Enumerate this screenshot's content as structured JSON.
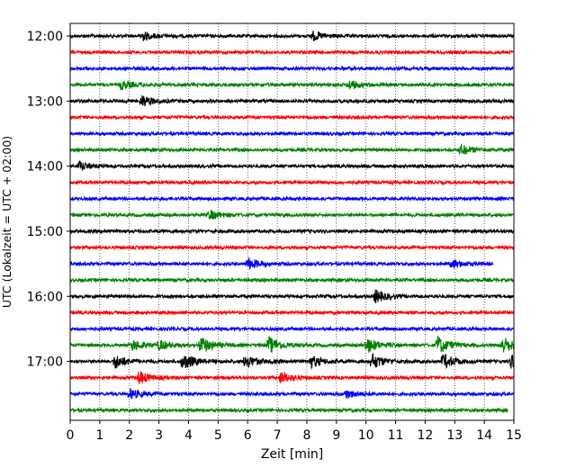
{
  "chart_data": {
    "type": "line",
    "title": "",
    "xlabel": "Zeit  [min]",
    "ylabel": "UTC (Lokalzeit = UTC + 02:00)",
    "xlim": [
      0,
      15
    ],
    "x_ticks": [
      "0",
      "1",
      "2",
      "3",
      "4",
      "5",
      "6",
      "7",
      "8",
      "9",
      "10",
      "11",
      "12",
      "13",
      "14",
      "15"
    ],
    "y_tick_labels": [
      "12:00",
      "13:00",
      "14:00",
      "15:00",
      "16:00",
      "17:00"
    ],
    "grid": "vertical dotted",
    "trace_colors": [
      "#000000",
      "#ff0000",
      "#0000ff",
      "#008000"
    ],
    "series": [
      {
        "values": [
          "12:00",
          15,
          "#000000"
        ]
      },
      {
        "values": [
          "12:15",
          15,
          "#ff0000"
        ]
      },
      {
        "values": [
          "12:30",
          15,
          "#0000ff"
        ]
      },
      {
        "values": [
          "12:45",
          15,
          "#008000"
        ]
      },
      {
        "values": [
          "13:00",
          15,
          "#000000"
        ]
      },
      {
        "values": [
          "13:15",
          15,
          "#ff0000"
        ]
      },
      {
        "values": [
          "13:30",
          15,
          "#0000ff"
        ]
      },
      {
        "values": [
          "13:45",
          15,
          "#008000"
        ]
      },
      {
        "values": [
          "14:00",
          15,
          "#000000"
        ]
      },
      {
        "values": [
          "14:15",
          15,
          "#ff0000"
        ]
      },
      {
        "values": [
          "14:30",
          15,
          "#0000ff"
        ]
      },
      {
        "values": [
          "14:45",
          15,
          "#008000"
        ]
      },
      {
        "values": [
          "15:00",
          15,
          "#000000"
        ]
      },
      {
        "values": [
          "15:15",
          15,
          "#ff0000"
        ]
      },
      {
        "values": [
          "15:30",
          14.3,
          "#0000ff"
        ]
      },
      {
        "values": [
          "15:45",
          15,
          "#008000"
        ]
      },
      {
        "values": [
          "16:00",
          15,
          "#000000"
        ]
      },
      {
        "values": [
          "16:15",
          15,
          "#ff0000"
        ]
      },
      {
        "values": [
          "16:30",
          15,
          "#0000ff"
        ]
      },
      {
        "values": [
          "16:45",
          15,
          "#008000"
        ]
      },
      {
        "values": [
          "17:00",
          15,
          "#000000"
        ]
      },
      {
        "values": [
          "17:15",
          15,
          "#ff0000"
        ]
      },
      {
        "values": [
          "17:30",
          15,
          "#0000ff"
        ]
      },
      {
        "values": [
          "17:45",
          14.8,
          "#008000"
        ]
      }
    ],
    "events": [
      {
        "trace": "12:00",
        "x": 2.4,
        "amp": 1.6
      },
      {
        "trace": "12:00",
        "x": 8.2,
        "amp": 1.5
      },
      {
        "trace": "12:45",
        "x": 1.7,
        "amp": 1.5
      },
      {
        "trace": "12:45",
        "x": 9.4,
        "amp": 1.6
      },
      {
        "trace": "13:00",
        "x": 2.4,
        "amp": 2.0
      },
      {
        "trace": "13:45",
        "x": 13.2,
        "amp": 1.8
      },
      {
        "trace": "14:00",
        "x": 0.3,
        "amp": 1.5
      },
      {
        "trace": "14:45",
        "x": 4.7,
        "amp": 1.6
      },
      {
        "trace": "15:30",
        "x": 6.0,
        "amp": 2.0
      },
      {
        "trace": "15:30",
        "x": 12.9,
        "amp": 1.5
      },
      {
        "trace": "16:00",
        "x": 10.3,
        "amp": 2.2
      },
      {
        "trace": "16:45",
        "x": 2.1,
        "amp": 1.8
      },
      {
        "trace": "16:45",
        "x": 3.0,
        "amp": 1.6
      },
      {
        "trace": "16:45",
        "x": 4.4,
        "amp": 3.0
      },
      {
        "trace": "16:45",
        "x": 6.7,
        "amp": 3.0
      },
      {
        "trace": "16:45",
        "x": 10.0,
        "amp": 2.8
      },
      {
        "trace": "16:45",
        "x": 12.4,
        "amp": 3.2
      },
      {
        "trace": "16:45",
        "x": 14.6,
        "amp": 3.0
      },
      {
        "trace": "17:00",
        "x": 1.5,
        "amp": 2.5
      },
      {
        "trace": "17:00",
        "x": 3.8,
        "amp": 3.0
      },
      {
        "trace": "17:00",
        "x": 5.9,
        "amp": 2.4
      },
      {
        "trace": "17:00",
        "x": 8.1,
        "amp": 2.2
      },
      {
        "trace": "17:00",
        "x": 10.2,
        "amp": 2.6
      },
      {
        "trace": "17:00",
        "x": 12.6,
        "amp": 2.6
      },
      {
        "trace": "17:00",
        "x": 14.9,
        "amp": 2.4
      },
      {
        "trace": "17:15",
        "x": 2.3,
        "amp": 2.3
      },
      {
        "trace": "17:15",
        "x": 7.1,
        "amp": 2.0
      },
      {
        "trace": "17:30",
        "x": 2.0,
        "amp": 1.7
      },
      {
        "trace": "17:30",
        "x": 9.3,
        "amp": 1.5
      }
    ]
  }
}
